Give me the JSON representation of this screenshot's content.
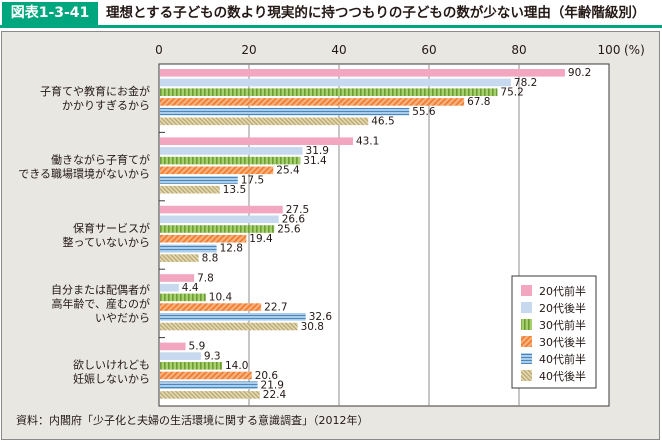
{
  "header": {
    "figure_no": "図表1-3-41",
    "title": "理想とする子どもの数より現実的に持つつもりの子どもの数が少ない理由（年齢階級別）"
  },
  "source": "資料：内閣府「少子化と夫婦の生活環境に関する意識調査」（2012年）",
  "chart_data": {
    "type": "bar",
    "orientation": "horizontal",
    "title": "理想とする子どもの数より現実的に持つつもりの子どもの数が少ない理由（年齢階級別）",
    "xlabel": "(%)",
    "ylabel": "",
    "xlim": [
      0,
      100
    ],
    "xticks": [
      0,
      20,
      40,
      60,
      80,
      100
    ],
    "grid": true,
    "legend_position": "bottom-right",
    "categories": [
      [
        "子育てや教育にお金が",
        "かかりすぎるから"
      ],
      [
        "働きながら子育てが",
        "できる職場環境がないから"
      ],
      [
        "保育サービスが",
        "整っていないから"
      ],
      [
        "自分または配偶者が",
        "高年齢で、産むのが",
        "いやだから"
      ],
      [
        "欲しいけれども",
        "妊娠しないから"
      ]
    ],
    "series": [
      {
        "name": "20代前半",
        "color": "#f2a6c0",
        "pattern": "solid",
        "values": [
          90.2,
          43.1,
          27.5,
          7.8,
          5.9
        ]
      },
      {
        "name": "20代後半",
        "color": "#c6d9ef",
        "pattern": "solid",
        "values": [
          78.2,
          31.9,
          26.6,
          4.4,
          9.3
        ]
      },
      {
        "name": "30代前半",
        "color": "#8dc154",
        "pattern": "vertical-lines",
        "values": [
          75.2,
          31.4,
          25.6,
          10.4,
          14.0
        ]
      },
      {
        "name": "30代後半",
        "color": "#f39a5c",
        "pattern": "diagonal-lines",
        "values": [
          67.8,
          25.4,
          19.4,
          22.7,
          20.6
        ]
      },
      {
        "name": "40代前半",
        "color": "#7fb2da",
        "pattern": "horizontal-lines",
        "values": [
          55.6,
          17.5,
          12.8,
          32.6,
          21.9
        ]
      },
      {
        "name": "40代後半",
        "color": "#d6c896",
        "pattern": "diagonal-hatch",
        "values": [
          46.5,
          13.5,
          8.8,
          30.8,
          22.4
        ]
      }
    ]
  }
}
